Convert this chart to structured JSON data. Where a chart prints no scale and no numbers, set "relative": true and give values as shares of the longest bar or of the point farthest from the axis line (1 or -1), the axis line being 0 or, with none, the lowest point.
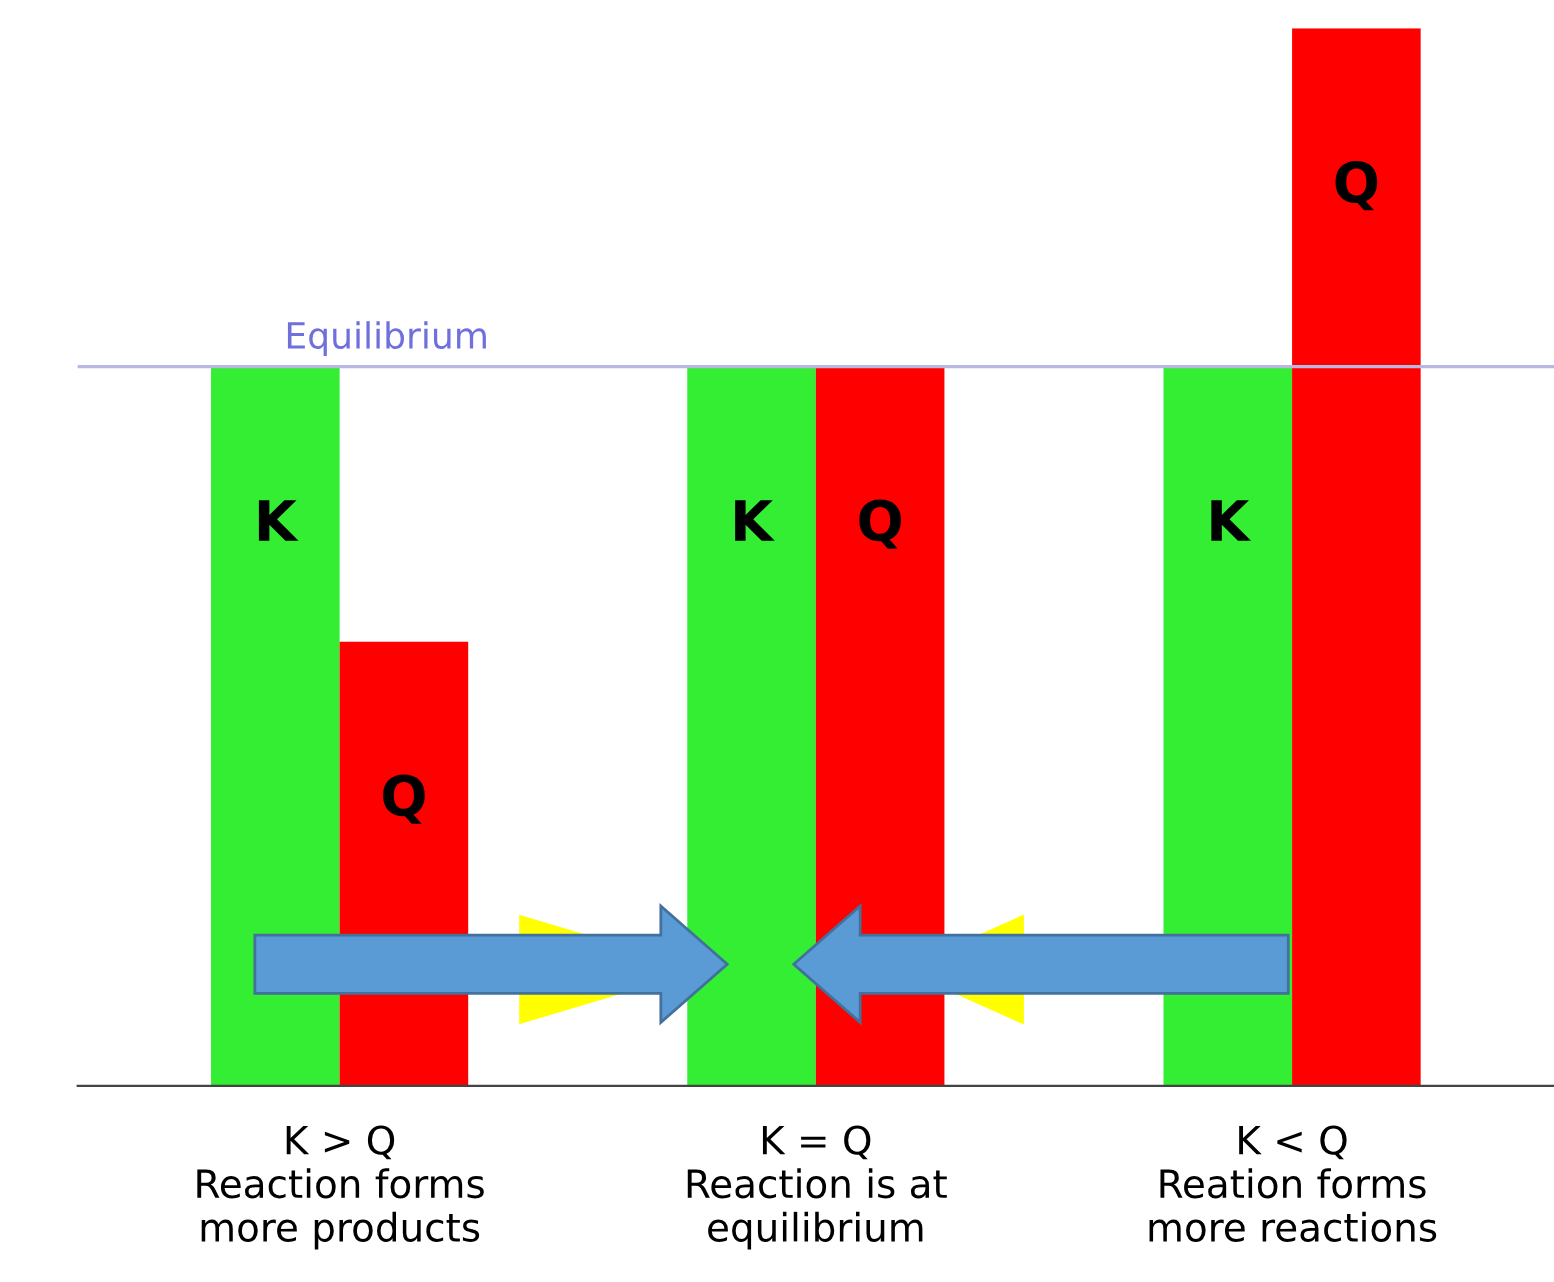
{
  "chart_data": {
    "type": "bar",
    "relative": true,
    "categories": [
      "K > Q\nReaction forms\nmore products",
      "K = Q\nReaction is at\nequilibrium",
      "K < Q\nReation forms\nmore reactions"
    ],
    "series": [
      {
        "name": "K",
        "color": "#33ee33",
        "values": [
          0.68,
          0.68,
          0.68
        ]
      },
      {
        "name": "Q",
        "color": "#ff0000",
        "values": [
          0.42,
          0.68,
          1
        ]
      }
    ],
    "ref_lines": [
      {
        "axis": "y",
        "value": 0.68,
        "label": "Equilibrium",
        "color": "#b8b8e0"
      }
    ],
    "grid": false,
    "legend": false
  }
}
